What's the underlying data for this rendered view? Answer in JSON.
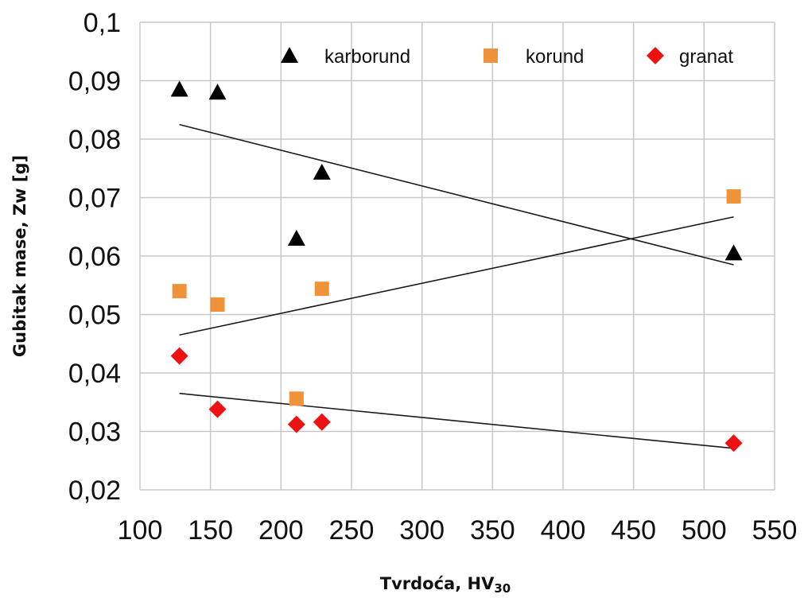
{
  "chart_data": {
    "type": "scatter",
    "xlabel": "Tvrdoća, HV",
    "xlabel_subscript": "30",
    "ylabel": "Gubitak mase, Zw [g]",
    "xlim": [
      100,
      550
    ],
    "ylim": [
      0.02,
      0.1
    ],
    "x_ticks": [
      100,
      150,
      200,
      250,
      300,
      350,
      400,
      450,
      500,
      550
    ],
    "y_ticks": [
      0.02,
      0.03,
      0.04,
      0.05,
      0.06,
      0.07,
      0.08,
      0.09,
      0.1
    ],
    "y_tick_labels": [
      "0,02",
      "0,03",
      "0,04",
      "0,05",
      "0,06",
      "0,07",
      "0,08",
      "0,09",
      "0,1"
    ],
    "x_tick_labels": [
      "100",
      "150",
      "200",
      "250",
      "300",
      "350",
      "400",
      "450",
      "500",
      "550"
    ],
    "grid": true,
    "legend_position": "top",
    "series": [
      {
        "name": "karborund",
        "marker": "triangle",
        "color": "#000000",
        "x": [
          128,
          155,
          211,
          229,
          521
        ],
        "y": [
          0.0885,
          0.088,
          0.063,
          0.0743,
          0.0605
        ],
        "trendline": {
          "x": [
            128,
            521
          ],
          "y": [
            0.0825,
            0.0585
          ]
        }
      },
      {
        "name": "korund",
        "marker": "square",
        "color": "#f0923a",
        "x": [
          128,
          155,
          211,
          229,
          521
        ],
        "y": [
          0.054,
          0.0517,
          0.0356,
          0.0544,
          0.0702
        ],
        "trendline": {
          "x": [
            128,
            521
          ],
          "y": [
            0.0465,
            0.0667
          ]
        }
      },
      {
        "name": "granat",
        "marker": "diamond",
        "color": "#ee1111",
        "x": [
          128,
          155,
          211,
          229,
          521
        ],
        "y": [
          0.0429,
          0.0338,
          0.0312,
          0.0316,
          0.028
        ],
        "trendline": {
          "x": [
            128,
            521
          ],
          "y": [
            0.0365,
            0.0271
          ]
        }
      }
    ]
  }
}
